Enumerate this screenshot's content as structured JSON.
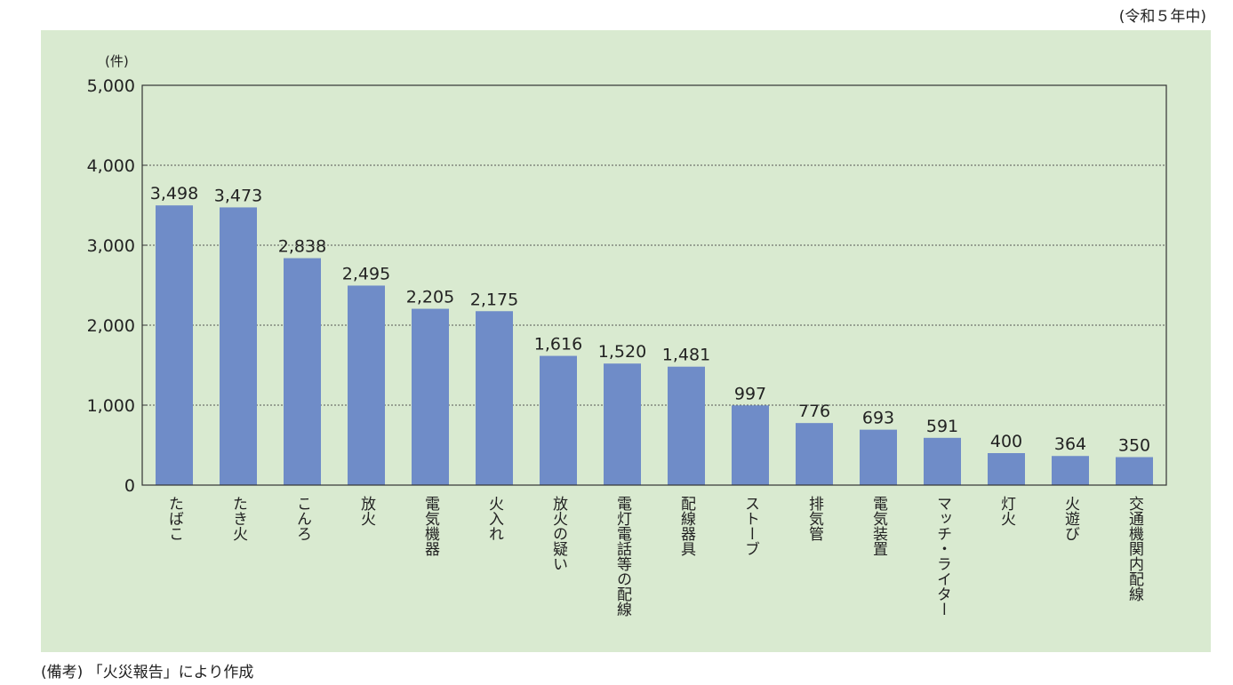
{
  "period": "(令和５年中)",
  "note": "(備考) 「火災報告」により作成",
  "chart_data": {
    "type": "bar",
    "unit": "(件)",
    "ylim": [
      0,
      5000
    ],
    "yticks": [
      0,
      1000,
      2000,
      3000,
      4000,
      5000
    ],
    "ytick_labels": [
      "0",
      "1,000",
      "2,000",
      "3,000",
      "4,000",
      "5,000"
    ],
    "grid": "horizontal dotted",
    "bar_color": "#6f8cc8",
    "background_color": "#d9ead0",
    "categories": [
      "たばこ",
      "たき火",
      "こんろ",
      "放火",
      "電気機器",
      "火入れ",
      "放火の疑い",
      "電灯電話等の配線",
      "配線器具",
      "ストーブ",
      "排気管",
      "電気装置",
      "マッチ・ライター",
      "灯火",
      "火遊び",
      "交通機関内配線"
    ],
    "values": [
      3498,
      3473,
      2838,
      2495,
      2205,
      2175,
      1616,
      1520,
      1481,
      997,
      776,
      693,
      591,
      400,
      364,
      350
    ],
    "value_labels": [
      "3,498",
      "3,473",
      "2,838",
      "2,495",
      "2,205",
      "2,175",
      "1,616",
      "1,520",
      "1,481",
      "997",
      "776",
      "693",
      "591",
      "400",
      "364",
      "350"
    ]
  }
}
